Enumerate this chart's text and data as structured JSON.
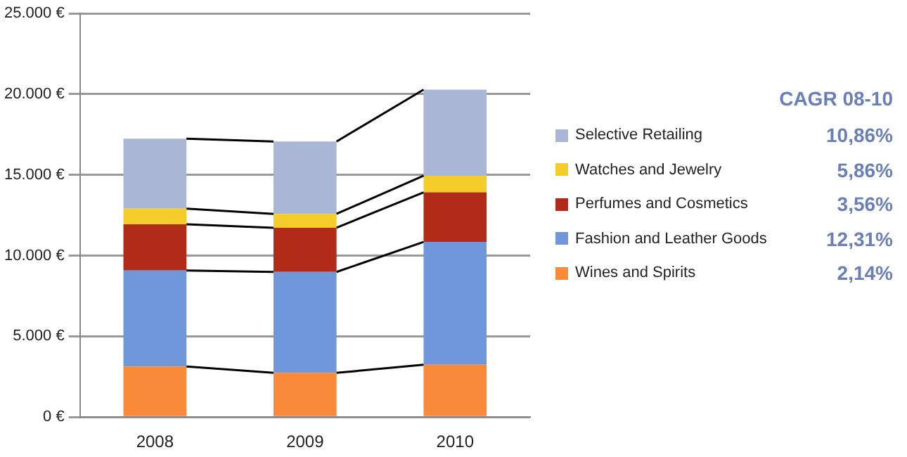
{
  "chart_data": {
    "type": "bar",
    "stacked": true,
    "categories": [
      "2008",
      "2009",
      "2010"
    ],
    "series": [
      {
        "name": "Wines and Spirits",
        "color": "#f98a3a",
        "values": [
          3130,
          2740,
          3240
        ]
      },
      {
        "name": "Fashion and Leather Goods",
        "color": "#7097d9",
        "values": [
          5950,
          6250,
          7610
        ]
      },
      {
        "name": "Perfumes and Cosmetics",
        "color": "#b22a18",
        "values": [
          2860,
          2740,
          3070
        ]
      },
      {
        "name": "Watches and Jewelry",
        "color": "#f5cd2a",
        "values": [
          970,
          860,
          1030
        ]
      },
      {
        "name": "Selective Retailing",
        "color": "#aab6d6",
        "values": [
          4340,
          4480,
          5330
        ]
      }
    ],
    "ylim": [
      0,
      25000
    ],
    "yticks": [
      {
        "value": 0,
        "label": "0 €"
      },
      {
        "value": 5000,
        "label": "5.000 €"
      },
      {
        "value": 10000,
        "label": "10.000 €"
      },
      {
        "value": 15000,
        "label": "15.000 €"
      },
      {
        "value": 20000,
        "label": "20.000 €"
      },
      {
        "value": 25000,
        "label": "25.000 €"
      }
    ],
    "grid": "y",
    "legend": "right",
    "legend_title": "CAGR 08-10",
    "annotations": [
      "10,86%",
      "5,86%",
      "3,56%",
      "12,31%",
      "2,14%"
    ]
  }
}
